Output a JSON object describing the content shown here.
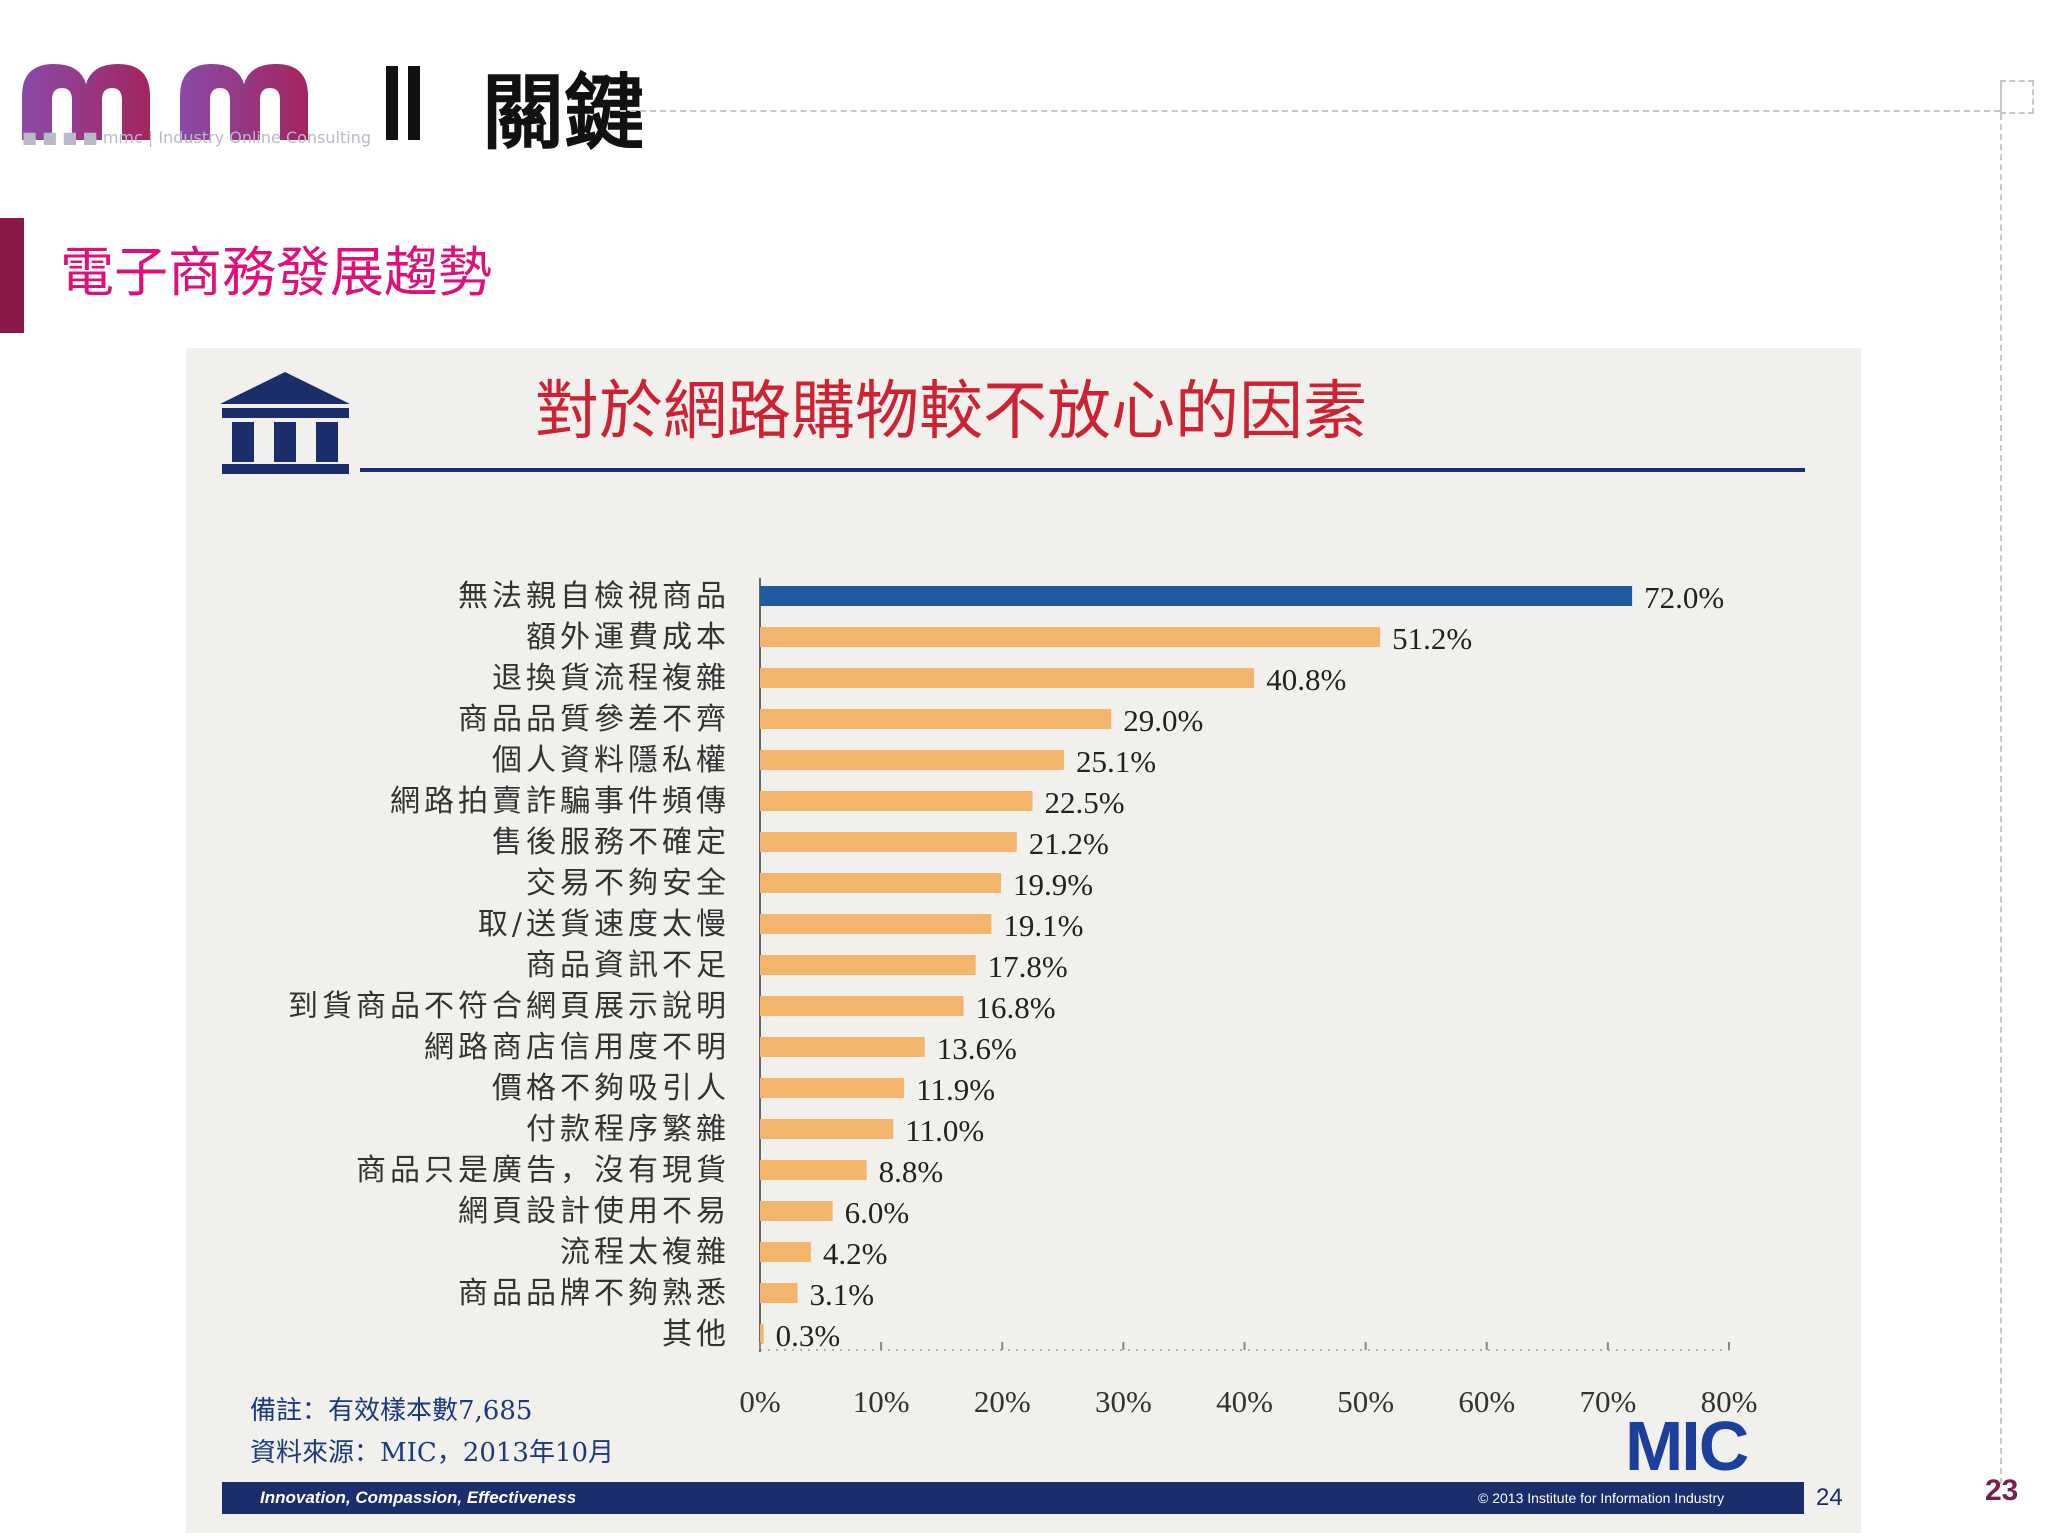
{
  "header": {
    "logo_text": "關鍵",
    "logo_subtext": "■ ■ ■ ■ mmc | Industry Online Consulting"
  },
  "slide": {
    "title": "電子商務發展趨勢",
    "page_number": "23",
    "accent_color": "#8b1a4a",
    "title_color": "#e0107a"
  },
  "inner_slide": {
    "title": "對於網路購物較不放心的因素",
    "note": "備註：有效樣本數7,685",
    "source": "資料來源：MIC，2013年10月",
    "brand": "MIC",
    "footer_left": "Innovation, Compassion, Effectiveness",
    "footer_right": "© 2013 Institute for Information Industry",
    "page_number": "24"
  },
  "chart_data": {
    "type": "bar",
    "orientation": "horizontal",
    "categories": [
      "無法親自檢視商品",
      "額外運費成本",
      "退換貨流程複雜",
      "商品品質參差不齊",
      "個人資料隱私權",
      "網路拍賣詐騙事件頻傳",
      "售後服務不確定",
      "交易不夠安全",
      "取/送貨速度太慢",
      "商品資訊不足",
      "到貨商品不符合網頁展示說明",
      "網路商店信用度不明",
      "價格不夠吸引人",
      "付款程序繁雜",
      "商品只是廣告，沒有現貨",
      "網頁設計使用不易",
      "流程太複雜",
      "商品品牌不夠熟悉",
      "其他"
    ],
    "values": [
      72.0,
      51.2,
      40.8,
      29.0,
      25.1,
      22.5,
      21.2,
      19.9,
      19.1,
      17.8,
      16.8,
      13.6,
      11.9,
      11.0,
      8.8,
      6.0,
      4.2,
      3.1,
      0.3
    ],
    "value_labels": [
      "72.0%",
      "51.2%",
      "40.8%",
      "29.0%",
      "25.1%",
      "22.5%",
      "21.2%",
      "19.9%",
      "19.1%",
      "17.8%",
      "16.8%",
      "13.6%",
      "11.9%",
      "11.0%",
      "8.8%",
      "6.0%",
      "4.2%",
      "3.1%",
      "0.3%"
    ],
    "x_ticks": [
      "0%",
      "10%",
      "20%",
      "30%",
      "40%",
      "50%",
      "60%",
      "70%",
      "80%"
    ],
    "xlim": [
      0,
      80
    ],
    "highlight_color": "#1f5aa0",
    "bar_color": "#f2b56b",
    "grid": false
  }
}
